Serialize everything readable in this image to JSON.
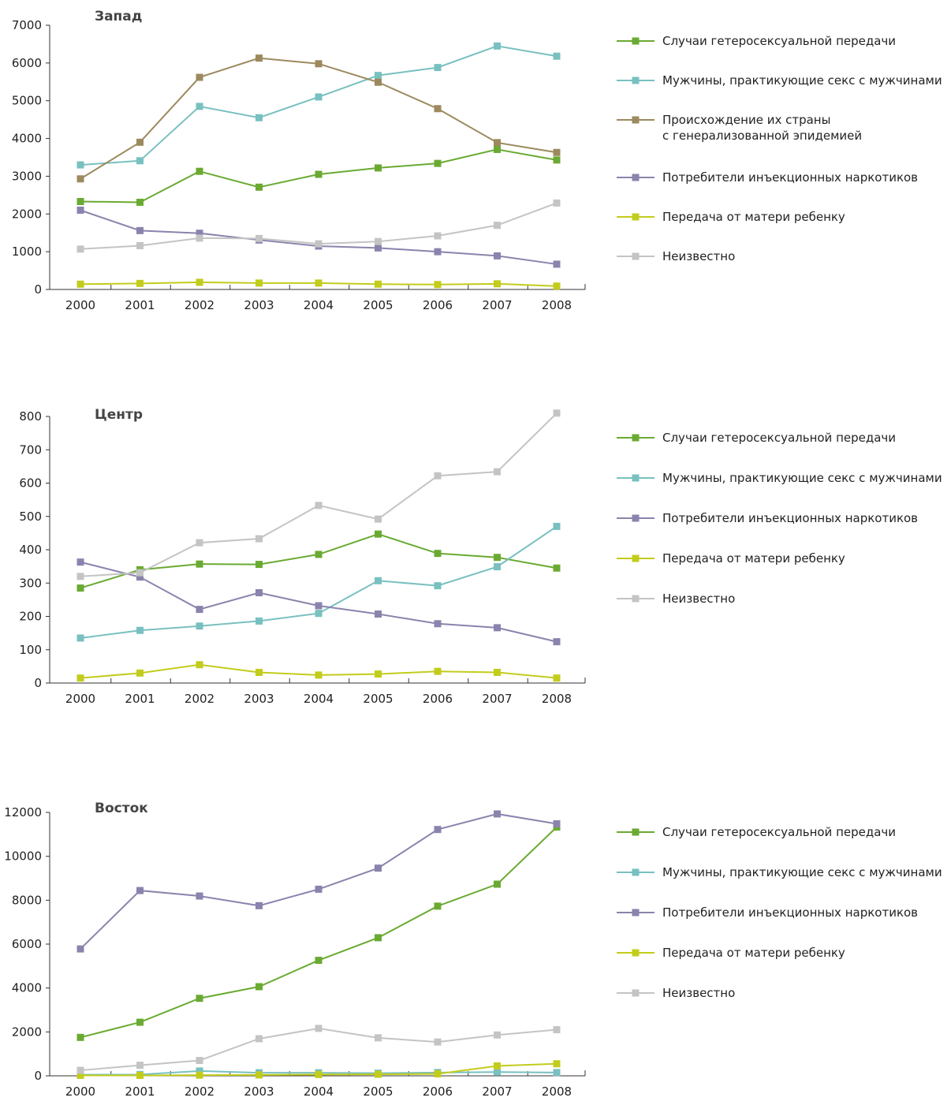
{
  "colors": {
    "hetero": "#6aaa32",
    "msm": "#79c0c0",
    "origin": "#9c8a5e",
    "idu": "#8b83ad",
    "mtct": "#c2cc1c",
    "unknown": "#c4c4c4"
  },
  "chart_data": [
    {
      "type": "line",
      "title": "Запад",
      "x": [
        "2000",
        "2001",
        "2002",
        "2003",
        "2004",
        "2005",
        "2006",
        "2007",
        "2008"
      ],
      "ylim": [
        0,
        7000
      ],
      "yticks": [
        "0",
        "1000",
        "2000",
        "3000",
        "4000",
        "5000",
        "6000",
        "7000"
      ],
      "ytick_values": [
        0,
        1000,
        2000,
        3000,
        4000,
        5000,
        6000,
        7000
      ],
      "grid": false,
      "legend": "right",
      "series": [
        {
          "name": "Случаи гетеросексуальной передачи",
          "color_key": "hetero",
          "values": [
            2330,
            2310,
            3130,
            2710,
            3050,
            3220,
            3340,
            3710,
            3430
          ]
        },
        {
          "name": "Мужчины, практикующие секс с мужчинами",
          "color_key": "msm",
          "values": [
            3300,
            3410,
            4850,
            4550,
            5100,
            5670,
            5880,
            6450,
            6180
          ]
        },
        {
          "name": "Происхождение их страны\nс генерализованной эпидемией",
          "color_key": "origin",
          "values": [
            2930,
            3900,
            5620,
            6130,
            5980,
            5490,
            4790,
            3890,
            3630
          ]
        },
        {
          "name": "Потребители инъекционных наркотиков",
          "color_key": "idu",
          "values": [
            2100,
            1560,
            1490,
            1310,
            1150,
            1100,
            1000,
            890,
            670
          ]
        },
        {
          "name": "Передача от матери ребенку",
          "color_key": "mtct",
          "values": [
            140,
            160,
            190,
            170,
            170,
            140,
            130,
            150,
            90
          ]
        },
        {
          "name": "Неизвестно",
          "color_key": "unknown",
          "values": [
            1070,
            1160,
            1360,
            1350,
            1210,
            1270,
            1420,
            1700,
            2290
          ]
        }
      ]
    },
    {
      "type": "line",
      "title": "Центр",
      "x": [
        "2000",
        "2001",
        "2002",
        "2003",
        "2004",
        "2005",
        "2006",
        "2007",
        "2008"
      ],
      "ylim": [
        0,
        800
      ],
      "yticks": [
        "0",
        "100",
        "200",
        "300",
        "400",
        "500",
        "600",
        "700",
        "800"
      ],
      "ytick_values": [
        0,
        100,
        200,
        300,
        400,
        500,
        600,
        700,
        800
      ],
      "grid": false,
      "legend": "right",
      "series": [
        {
          "name": "Случаи гетеросексуальной передачи",
          "color_key": "hetero",
          "values": [
            285,
            340,
            357,
            356,
            386,
            447,
            389,
            377,
            345
          ]
        },
        {
          "name": "Мужчины, практикующие секс с мужчинами",
          "color_key": "msm",
          "values": [
            135,
            158,
            171,
            186,
            209,
            307,
            292,
            349,
            470
          ]
        },
        {
          "name": "Потребители инъекционных наркотиков",
          "color_key": "idu",
          "values": [
            363,
            318,
            221,
            271,
            232,
            207,
            178,
            166,
            124
          ]
        },
        {
          "name": "Передача от матери ребенку",
          "color_key": "mtct",
          "values": [
            15,
            30,
            55,
            32,
            24,
            27,
            35,
            32,
            15
          ]
        },
        {
          "name": "Неизвестно",
          "color_key": "unknown",
          "values": [
            320,
            331,
            421,
            433,
            533,
            492,
            622,
            634,
            810
          ]
        }
      ]
    },
    {
      "type": "line",
      "title": "Восток",
      "x": [
        "2000",
        "2001",
        "2002",
        "2003",
        "2004",
        "2005",
        "2006",
        "2007",
        "2008"
      ],
      "ylim": [
        0,
        12000
      ],
      "yticks": [
        "0",
        "2000",
        "4000",
        "6000",
        "8000",
        "10000",
        "12000"
      ],
      "ytick_values": [
        0,
        2000,
        4000,
        6000,
        8000,
        10000,
        12000
      ],
      "grid": false,
      "legend": "right",
      "series": [
        {
          "name": "Случаи гетеросексуальной передачи",
          "color_key": "hetero",
          "values": [
            1750,
            2440,
            3530,
            4060,
            5260,
            6290,
            7730,
            8730,
            11330
          ]
        },
        {
          "name": "Мужчины, практикующие секс с мужчинами",
          "color_key": "msm",
          "values": [
            50,
            60,
            220,
            140,
            140,
            120,
            150,
            170,
            150
          ]
        },
        {
          "name": "Потребители инъекционных наркотиков",
          "color_key": "idu",
          "values": [
            5780,
            8440,
            8190,
            7750,
            8500,
            9460,
            11220,
            11930,
            11480
          ]
        },
        {
          "name": "Передача от матери ребенку",
          "color_key": "mtct",
          "values": [
            20,
            20,
            30,
            40,
            60,
            70,
            90,
            450,
            550
          ]
        },
        {
          "name": "Неизвестно",
          "color_key": "unknown",
          "values": [
            250,
            480,
            700,
            1690,
            2160,
            1730,
            1540,
            1860,
            2100
          ]
        }
      ]
    }
  ]
}
